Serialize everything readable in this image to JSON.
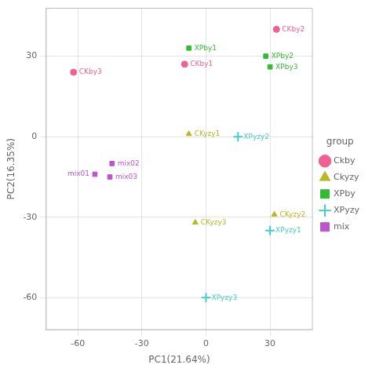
{
  "chart_data": {
    "type": "scatter",
    "title": "",
    "xlabel": "PC1(21.64%)",
    "ylabel": "PC2(16.35%)",
    "xlim": [
      -75,
      50
    ],
    "ylim": [
      -72,
      48
    ],
    "xticks": [
      -60,
      -30,
      0,
      30
    ],
    "yticks": [
      -60,
      -30,
      0,
      30
    ],
    "grid": true,
    "legend": "right",
    "legend_title": "group",
    "series": [
      {
        "name": "Ckby",
        "color": "#f06090",
        "marker": "o",
        "x": [
          -10,
          33,
          -62
        ],
        "values": [
          27,
          40,
          24
        ],
        "labels": [
          "CKby1",
          "CKby2",
          "CKby3"
        ]
      },
      {
        "name": "Ckyzy",
        "color": "#b8b820",
        "marker": "^",
        "x": [
          -8,
          32,
          -5
        ],
        "values": [
          1,
          -29,
          -32
        ],
        "labels": [
          "CKyzy1",
          "CKyzy2",
          "CKyzy3"
        ]
      },
      {
        "name": "XPby",
        "color": "#33bb33",
        "marker": "s",
        "x": [
          -8,
          28,
          30
        ],
        "values": [
          33,
          30,
          26
        ],
        "labels": [
          "XPby1",
          "XPby2",
          "XPby3"
        ]
      },
      {
        "name": "XPyzy",
        "color": "#44cccc",
        "marker": "+",
        "x": [
          30,
          15,
          0
        ],
        "values": [
          -35,
          0,
          -60
        ],
        "labels": [
          "XPyzy1",
          "XPyzy2",
          "XPyzy3"
        ]
      },
      {
        "name": "mix",
        "color": "#bb55cc",
        "marker": "s",
        "x": [
          -52,
          -44,
          -45
        ],
        "values": [
          -14,
          -10,
          -15
        ],
        "labels": [
          "mix01",
          "mix02",
          "mix03"
        ]
      }
    ]
  }
}
